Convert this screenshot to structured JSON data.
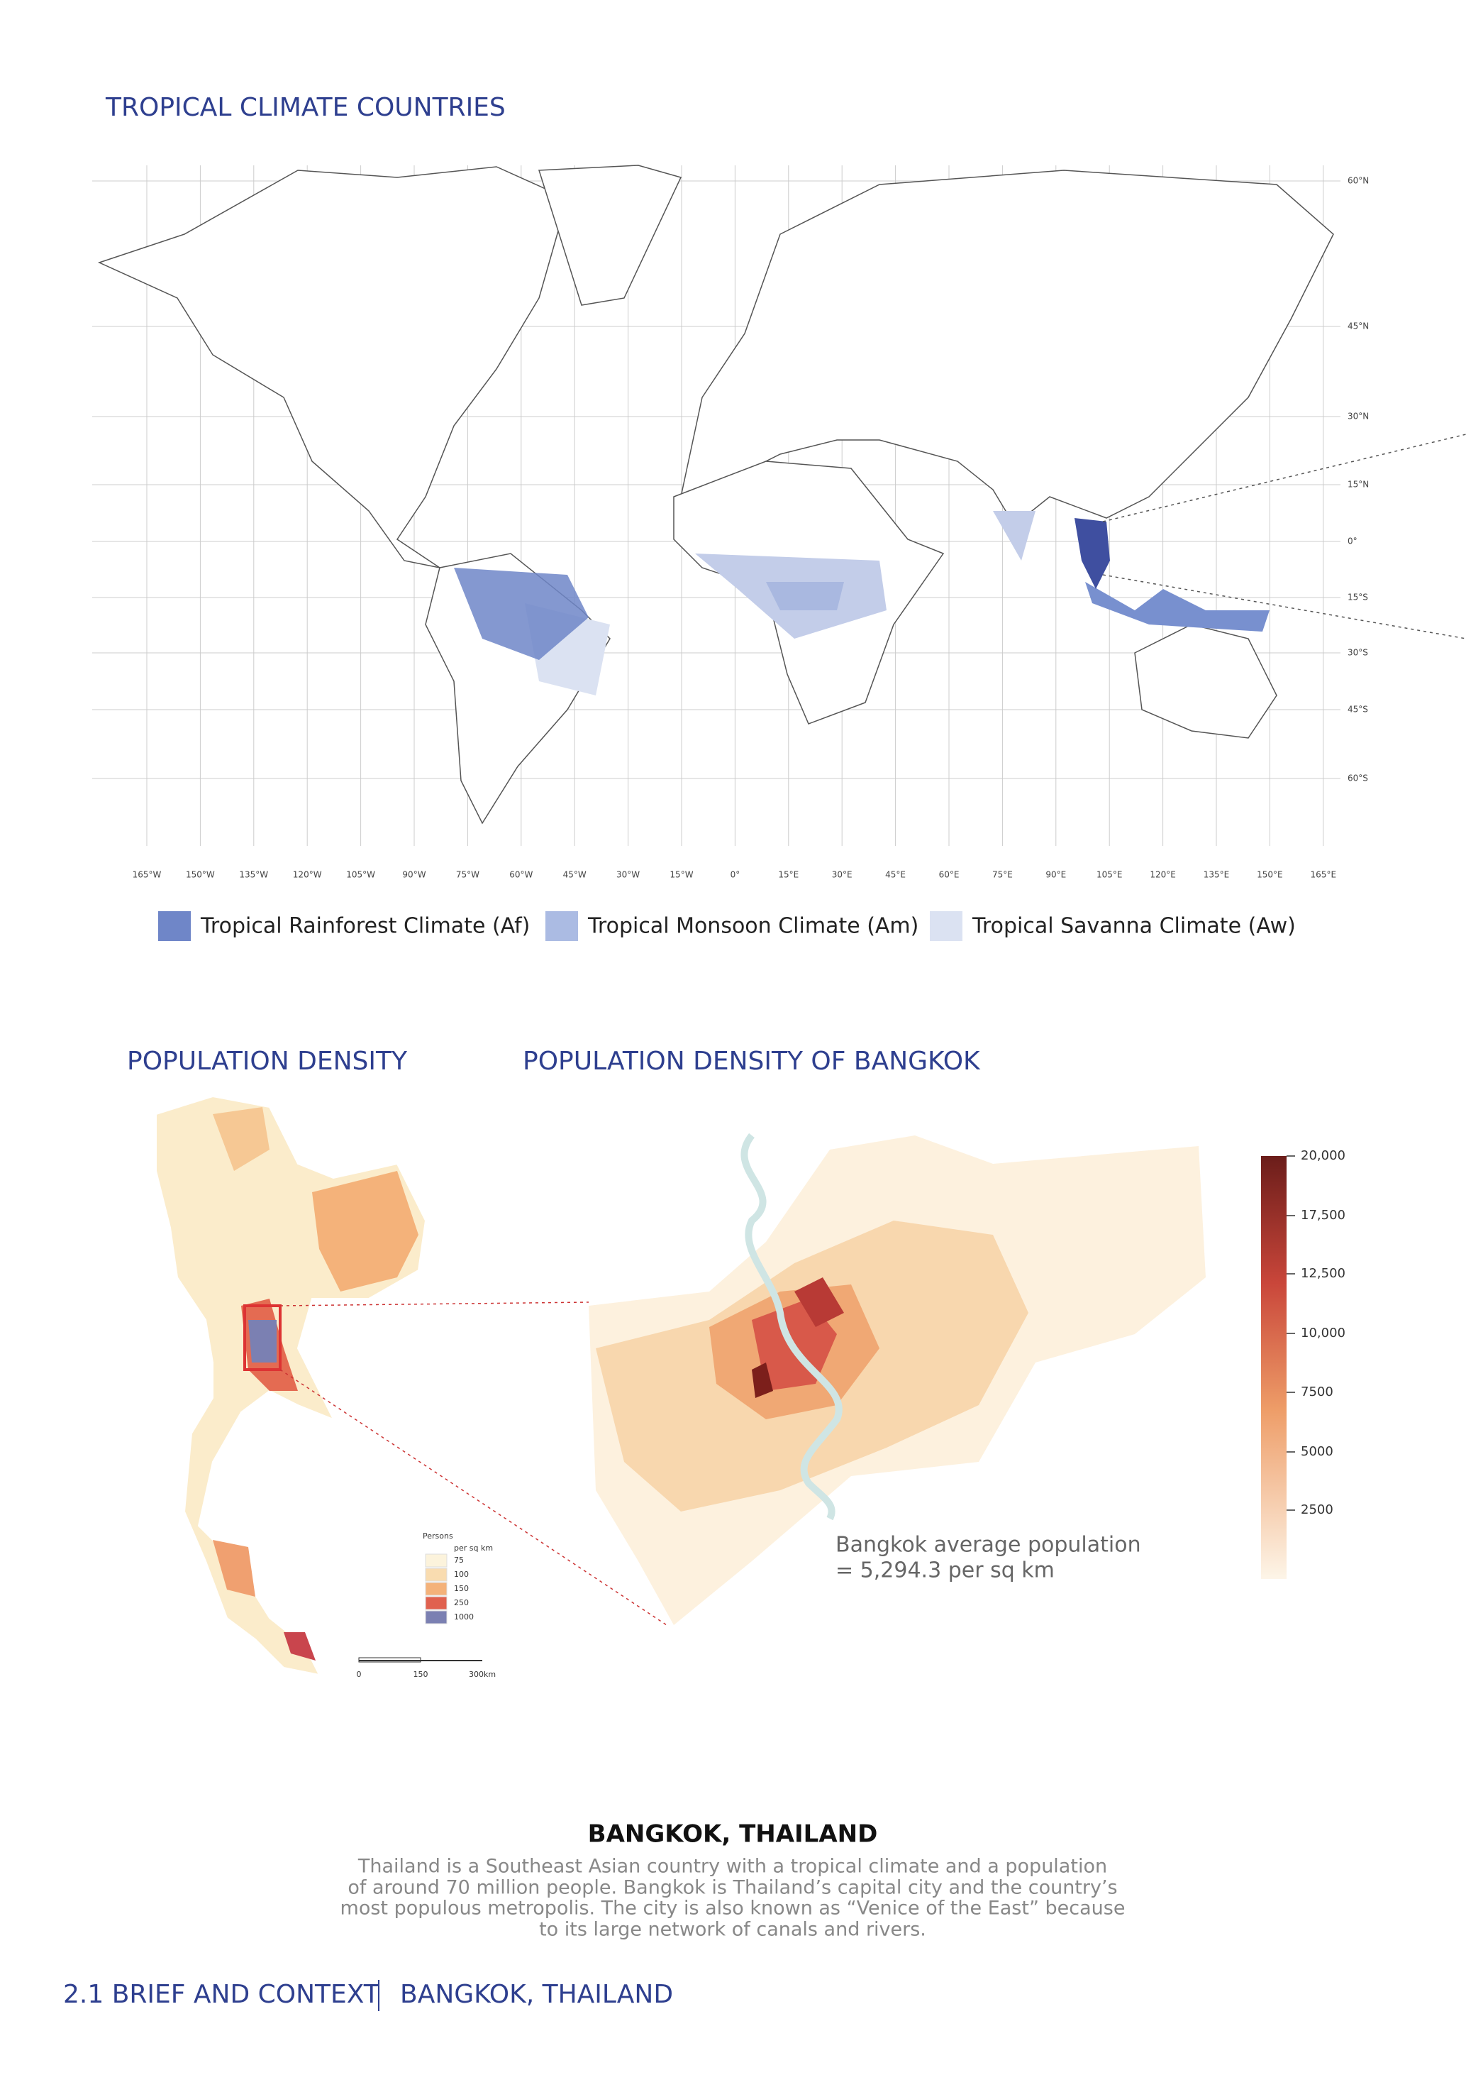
{
  "header": {
    "title": "TROPICAL CLIMATE COUNTRIES"
  },
  "world_map": {
    "latitude_labels": [
      "60°N",
      "45°N",
      "30°N",
      "15°N",
      "0°",
      "15°S",
      "30°S",
      "45°S",
      "60°S"
    ],
    "longitude_labels": [
      "165°W",
      "150°W",
      "135°W",
      "120°W",
      "105°W",
      "90°W",
      "75°W",
      "60°W",
      "45°W",
      "30°W",
      "15°W",
      "0°",
      "15°E",
      "30°E",
      "45°E",
      "60°E",
      "75°E",
      "90°E",
      "105°E",
      "120°E",
      "135°E",
      "150°E",
      "165°E"
    ],
    "legend": [
      "Tropical Rainforest Climate (Af)",
      "Tropical Monsoon Climate (Am)",
      "Tropical Savanna Climate (Aw)"
    ]
  },
  "population_density": {
    "title": "POPULATION DENSITY",
    "legend_title": "Persons",
    "legend_unit": "per sq km",
    "legend_items": [
      "75",
      "100",
      "150",
      "250",
      "1000"
    ],
    "scale_labels": [
      "0",
      "150",
      "300km"
    ]
  },
  "bangkok": {
    "title": "POPULATION DENSITY OF BANGKOK",
    "colorbar_labels": [
      "20,000",
      "17,500",
      "12,500",
      "10,000",
      "7500",
      "5000",
      "2500"
    ],
    "note": [
      "Bangkok average population",
      "= 5,294.3 per sq km"
    ]
  },
  "context": {
    "heading": "BANGKOK, THAILAND",
    "paragraph": [
      "Thailand is a Southeast Asian country with a tropical climate and a population",
      "of around 70 million people. Bangkok is Thailand’s capital city and the country’s",
      "most populous metropolis. The city is also known as “Venice of the East” because",
      "to its large network of canals and rivers."
    ]
  },
  "footer": {
    "section": "2.1 BRIEF AND CONTEXT",
    "subtitle": "BANGKOK, THAILAND"
  }
}
